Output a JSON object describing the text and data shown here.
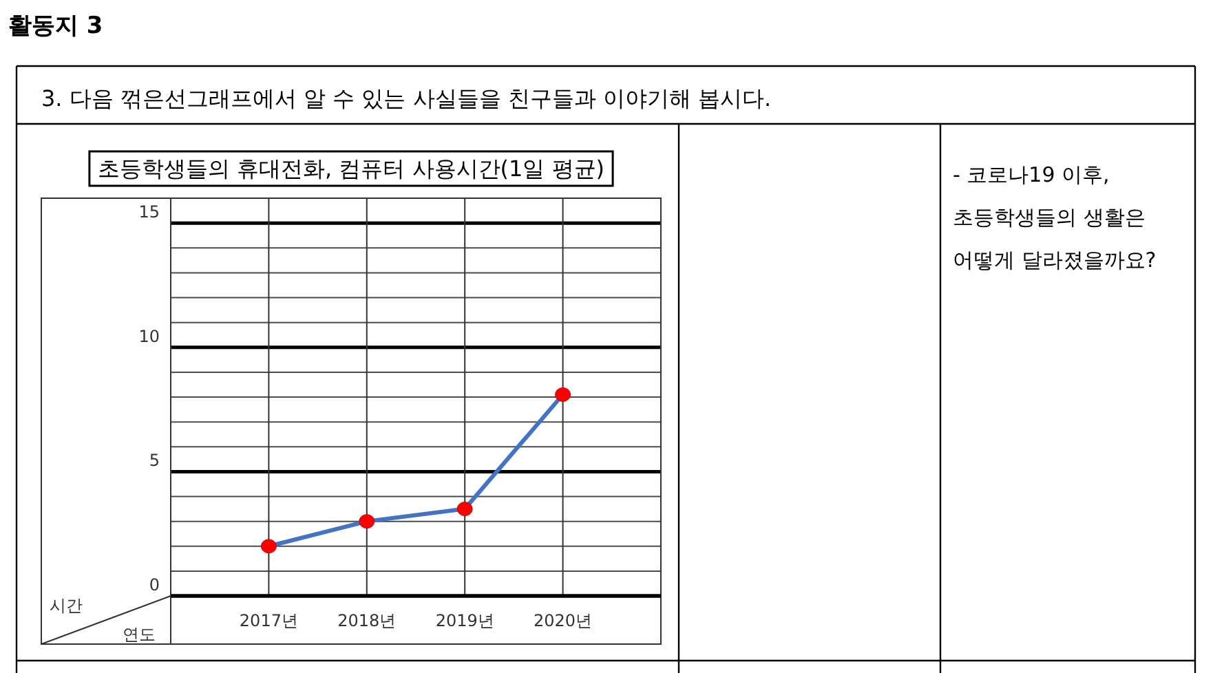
{
  "chart_data": {
    "type": "line",
    "title": "초등학생들의 휴대전화, 컴퓨터 사용시간(1일 평균)",
    "subtitle": "3. 다음 꺾은선그래프에서 알 수 있는 사실들을 친구들과 이야기해 봅시다.",
    "ylabel": "시간",
    "xlabel": "연도",
    "annotations": [
      "활동지 3",
      "- 코로나19 이후, 초등학생들의 생활은 어떻게 달라졌을까요?"
    ],
    "categories": [
      "2017년",
      "2018년",
      "2019년",
      "2020년"
    ],
    "series": [
      {
        "color": "#4472c4",
        "colors": [
          "#ff0000",
          "#ff0000",
          "#ff0000",
          "#ff0000"
        ],
        "values": [
          2.0,
          3.0,
          3.5,
          8.1
        ]
      }
    ],
    "marker": "circle",
    "line_style": "solid",
    "grid": true,
    "ylim": [
      0,
      16
    ],
    "yticks": [
      0,
      {
        "value": 1,
        "label": null
      },
      {
        "value": 2,
        "label": null
      },
      {
        "value": 3,
        "label": null
      },
      {
        "value": 4,
        "label": null
      },
      5,
      {
        "value": 6,
        "label": null
      },
      {
        "value": 7,
        "label": null
      },
      {
        "value": 8,
        "label": null
      },
      {
        "value": 9,
        "label": null
      },
      10,
      {
        "value": 11,
        "label": null
      },
      {
        "value": 12,
        "label": null
      },
      {
        "value": 13,
        "label": null
      },
      {
        "value": 14,
        "label": null
      },
      15
    ]
  }
}
